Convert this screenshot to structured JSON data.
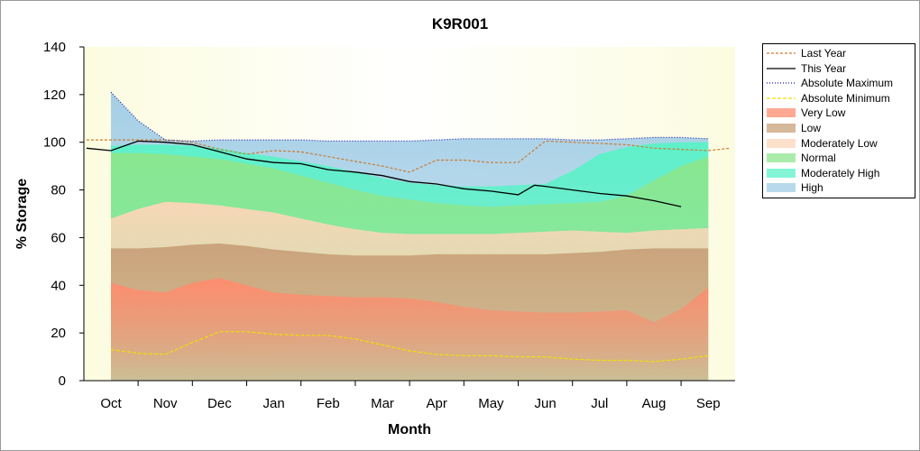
{
  "chart_data": {
    "type": "area",
    "title": "K9R001",
    "xlabel": "Month",
    "ylabel": "% Storage",
    "ylim": [
      0,
      140
    ],
    "yticks": [
      "0",
      "20",
      "40",
      "60",
      "80",
      "100",
      "120",
      "140"
    ],
    "categories": [
      "Oct",
      "Nov",
      "Dec",
      "Jan",
      "Feb",
      "Mar",
      "Apr",
      "May",
      "Jun",
      "Jul",
      "Aug",
      "Sep"
    ],
    "x": [
      0,
      0.5,
      1,
      1.5,
      2,
      2.5,
      3,
      3.5,
      4,
      4.5,
      5,
      5.5,
      6,
      6.5,
      7,
      7.5,
      8,
      8.5,
      9,
      9.5,
      10,
      10.5,
      11
    ],
    "grid": false,
    "legend_position": "right",
    "bands": [
      {
        "name": "Very Low",
        "color": "#ff8c6e",
        "values": [
          41,
          38,
          37,
          41,
          43,
          40,
          37,
          36,
          35.5,
          35,
          35,
          34.5,
          33,
          31,
          29.5,
          29,
          28.5,
          28.5,
          29,
          29.5,
          24.5,
          30,
          39
        ]
      },
      {
        "name": "Low",
        "color": "#c8a078",
        "values": [
          55.5,
          55.5,
          56,
          57,
          57.5,
          56.5,
          55,
          54,
          53,
          52.5,
          52.5,
          52.5,
          53,
          53,
          53,
          53,
          53,
          53.5,
          54,
          55,
          55.5,
          55.5,
          55.5
        ]
      },
      {
        "name": "Moderately Low",
        "color": "#fcd6b8",
        "values": [
          68,
          72,
          75,
          74.5,
          73.5,
          72,
          70.5,
          68,
          65.5,
          63.5,
          62,
          61.5,
          61.5,
          61.5,
          61.5,
          62,
          62.5,
          63,
          62.5,
          62,
          63,
          63.5,
          64
        ]
      },
      {
        "name": "Normal",
        "color": "#8ce68c",
        "values": [
          95.5,
          95.5,
          95,
          94,
          93,
          91,
          89,
          86,
          83,
          80,
          77.5,
          76,
          74.5,
          73.5,
          73,
          73.5,
          74,
          74.5,
          75,
          77.5,
          84,
          90,
          94
        ]
      },
      {
        "name": "Moderately High",
        "color": "#5af2c8",
        "values": [
          98.5,
          99,
          99,
          98.5,
          97.5,
          95.5,
          94,
          92,
          90,
          87.5,
          85,
          83,
          82,
          81.5,
          81.5,
          82,
          82.5,
          88,
          95,
          98,
          99.5,
          100,
          100
        ]
      },
      {
        "name": "High",
        "color": "#a0cce6",
        "values": [
          121,
          109,
          101,
          100.5,
          101,
          101,
          101,
          101,
          100.5,
          100.5,
          100.5,
          100.5,
          101,
          101.5,
          101.5,
          101.5,
          101.5,
          101,
          101,
          101.5,
          102,
          102,
          101.5
        ]
      }
    ],
    "series": [
      {
        "name": "Last Year",
        "color": "#cc7a30",
        "dash": "3,2",
        "x": [
          -0.45,
          0,
          0.5,
          1,
          1.5,
          2,
          2.5,
          3,
          3.5,
          4,
          4.5,
          5,
          5.5,
          6,
          6.5,
          7,
          7.5,
          8,
          8.5,
          9,
          9.5,
          10,
          10.5,
          11,
          11.4
        ],
        "values": [
          101,
          101,
          101,
          101,
          100,
          97,
          95,
          96.5,
          96,
          94,
          92,
          90,
          87.5,
          92.5,
          92.5,
          91.5,
          91.5,
          100.5,
          100,
          99.5,
          99,
          97.5,
          97,
          96.5,
          97.5
        ]
      },
      {
        "name": "This Year",
        "color": "#000000",
        "dash": "",
        "x": [
          -0.45,
          0,
          0.5,
          1,
          1.5,
          2,
          2.5,
          3,
          3.5,
          4,
          4.5,
          5,
          5.5,
          6,
          6.5,
          7,
          7.5,
          7.8,
          8,
          8.5,
          9,
          9.5,
          10,
          10.5
        ],
        "values": [
          97.5,
          96.5,
          100.5,
          100,
          99,
          96,
          93,
          91.5,
          91,
          88.5,
          87.5,
          86,
          83.5,
          82.5,
          80.5,
          79.5,
          78,
          82,
          81.5,
          80,
          78.5,
          77.5,
          75.5,
          73
        ]
      },
      {
        "name": "Absolute Maximum",
        "color": "#1e1eb4",
        "dash": "1,2",
        "x": [
          0,
          0.5,
          1,
          1.5,
          2,
          2.5,
          3,
          3.5,
          4,
          4.5,
          5,
          5.5,
          6,
          6.5,
          7,
          7.5,
          8,
          8.5,
          9,
          9.5,
          10,
          10.5,
          11
        ],
        "values": [
          121,
          109,
          101,
          100.5,
          101,
          101,
          101,
          101,
          100.5,
          100.5,
          100.5,
          100.5,
          101,
          101.5,
          101.5,
          101.5,
          101.5,
          101,
          101,
          101.5,
          102,
          102,
          101.5
        ]
      },
      {
        "name": "Absolute Minimum",
        "color": "#f0e000",
        "dash": "4,2",
        "x": [
          0,
          0.5,
          1,
          1.5,
          2,
          2.5,
          3,
          3.5,
          4,
          4.5,
          5,
          5.5,
          6,
          6.5,
          7,
          7.5,
          8,
          8.5,
          9,
          9.5,
          10,
          10.5,
          11
        ],
        "values": [
          13,
          11.5,
          11,
          16,
          20.5,
          20.5,
          19.5,
          19,
          19,
          17.5,
          15,
          12.5,
          11,
          10.5,
          10.5,
          10,
          10,
          9,
          8.5,
          8.5,
          8,
          9,
          10.5
        ]
      }
    ],
    "legend": [
      {
        "label": "Last Year",
        "kind": "line",
        "color": "#cc7a30",
        "dash": "3,2"
      },
      {
        "label": "This Year",
        "kind": "line",
        "color": "#000000",
        "dash": ""
      },
      {
        "label": "Absolute Maximum",
        "kind": "line",
        "color": "#1e1eb4",
        "dash": "1,2"
      },
      {
        "label": "Absolute Minimum",
        "kind": "line",
        "color": "#f0e000",
        "dash": "4,2"
      },
      {
        "label": "Very Low",
        "kind": "fill",
        "color": "#ff8c6e"
      },
      {
        "label": "Low",
        "kind": "fill",
        "color": "#c8a078"
      },
      {
        "label": "Moderately Low",
        "kind": "fill",
        "color": "#fcd6b8"
      },
      {
        "label": "Normal",
        "kind": "fill",
        "color": "#8ce68c"
      },
      {
        "label": "Moderately High",
        "kind": "fill",
        "color": "#5af2c8"
      },
      {
        "label": "High",
        "kind": "fill",
        "color": "#a0cce6"
      }
    ],
    "colors": {
      "plot_background": "#fcfce0",
      "axis": "#000000"
    }
  }
}
